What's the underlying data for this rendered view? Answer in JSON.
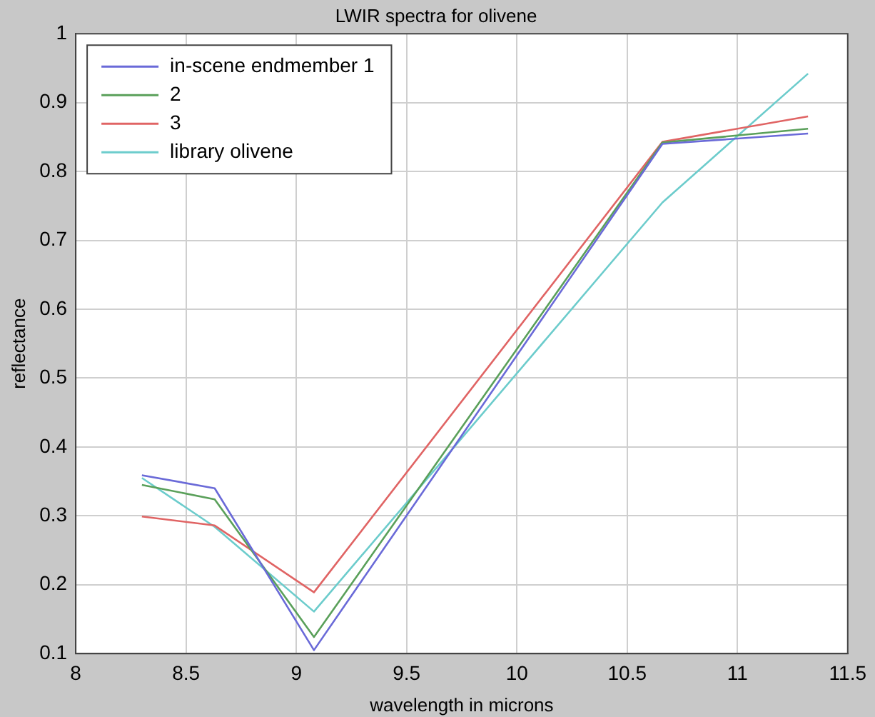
{
  "chart_data": {
    "type": "line",
    "title": "LWIR spectra for olivene",
    "xlabel": "wavelength in microns",
    "ylabel": "reflectance",
    "x": [
      8.3,
      8.63,
      9.08,
      10.66,
      11.32
    ],
    "series": [
      {
        "name": "in-scene endmember 1",
        "color": "#6a6ad8",
        "values": [
          0.359,
          0.34,
          0.105,
          0.84,
          0.855
        ]
      },
      {
        "name": "2",
        "color": "#5aa05a",
        "values": [
          0.345,
          0.324,
          0.124,
          0.842,
          0.862
        ]
      },
      {
        "name": "3",
        "color": "#e06464",
        "values": [
          0.299,
          0.286,
          0.189,
          0.843,
          0.88
        ]
      },
      {
        "name": "library olivene",
        "color": "#6ccccc",
        "values": [
          0.355,
          0.284,
          0.161,
          0.755,
          0.942
        ]
      }
    ],
    "xlim": [
      8,
      11.5
    ],
    "xticks": [
      8,
      8.5,
      9,
      9.5,
      10,
      10.5,
      11,
      11.5
    ],
    "ylim": [
      0.1,
      1
    ],
    "yticks": [
      0.1,
      0.2,
      0.3,
      0.4,
      0.5,
      0.6,
      0.7,
      0.8,
      0.9,
      1
    ],
    "grid": true,
    "legend": "top left",
    "marker": "none",
    "line_style": "solid"
  }
}
